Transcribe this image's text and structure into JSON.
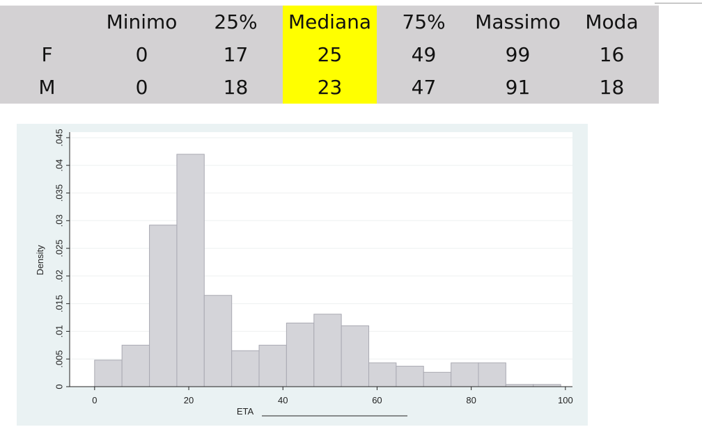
{
  "table": {
    "columns": [
      "Minimo",
      "25%",
      "Mediana",
      "75%",
      "Massimo",
      "Moda"
    ],
    "rows": [
      [
        "F",
        0,
        17,
        25,
        49,
        99,
        16
      ],
      [
        "M",
        0,
        18,
        23,
        47,
        91,
        18
      ]
    ]
  },
  "chart_data": {
    "type": "histogram",
    "ylabel": "Density",
    "xlabel": "ETA",
    "bins": [
      0,
      5.82,
      11.65,
      17.47,
      23.29,
      29.12,
      34.94,
      40.76,
      46.59,
      52.41,
      58.24,
      64.06,
      69.88,
      75.71,
      81.53,
      87.35,
      93.18,
      99
    ],
    "values": [
      0.0048,
      0.0075,
      0.0292,
      0.042,
      0.0165,
      0.0065,
      0.0075,
      0.0115,
      0.0131,
      0.011,
      0.0043,
      0.0037,
      0.0026,
      0.0043,
      0.0043,
      0.0004,
      0.0004
    ],
    "color": "#d4d4d9",
    "xlim": [
      -5.3,
      101.5
    ],
    "ylim": [
      0,
      0.046
    ],
    "xticks": [
      0,
      20,
      40,
      60,
      80,
      100
    ],
    "yticks": [
      0,
      {
        "value": 0.005,
        "label": ".005"
      },
      {
        "value": 0.01,
        "label": ".01"
      },
      {
        "value": 0.015,
        "label": ".015"
      },
      {
        "value": 0.02,
        "label": ".02"
      },
      {
        "value": 0.025,
        "label": ".025"
      },
      {
        "value": 0.03,
        "label": ".03"
      },
      {
        "value": 0.035,
        "label": ".035"
      },
      {
        "value": 0.04,
        "label": ".04"
      },
      {
        "value": 0.045,
        "label": ".045"
      }
    ],
    "grid": true
  }
}
